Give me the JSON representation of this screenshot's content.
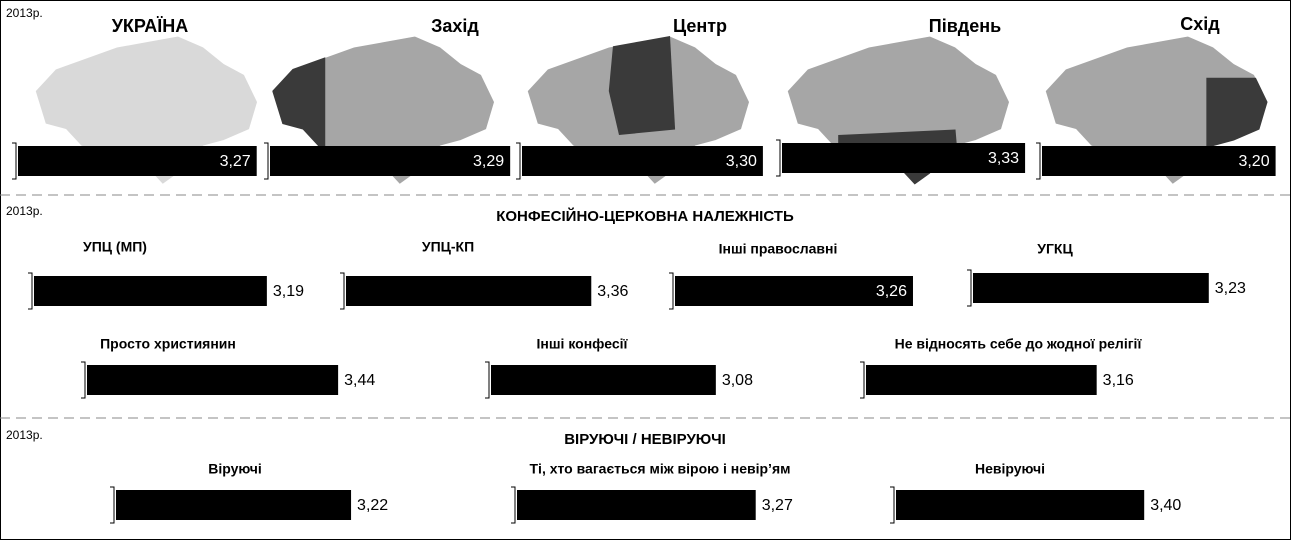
{
  "regions": {
    "year": "2013р.",
    "names": [
      "УКРАЇНА",
      "Захід",
      "Центр",
      "Південь",
      "Схід"
    ],
    "values": [
      3.27,
      3.29,
      3.3,
      3.33,
      3.2
    ],
    "value_labels": [
      "3,27",
      "3,29",
      "3,30",
      "3,33",
      "3,20"
    ]
  },
  "confession": {
    "year": "2013р.",
    "title": "КОНФЕСІЙНО-ЦЕРКОВНА НАЛЕЖНІСТЬ",
    "names": [
      "УПЦ (МП)",
      "УПЦ-КП",
      "Інші православні",
      "УГКЦ",
      "Просто християнин",
      "Інші конфесії",
      "Не відносять себе до жодної релігії"
    ],
    "values": [
      3.19,
      3.36,
      3.26,
      3.23,
      3.44,
      3.08,
      3.16
    ],
    "value_labels": [
      "3,19",
      "3,36",
      "3,26",
      "3,23",
      "3,44",
      "3,08",
      "3,16"
    ]
  },
  "belief": {
    "year": "2013р.",
    "title": "ВІРУЮЧІ / НЕВІРУЮЧІ",
    "names": [
      "Віруючі",
      "Ті, хто вагається між вірою і невір’ям",
      "Невіруючі"
    ],
    "values": [
      3.22,
      3.27,
      3.4
    ],
    "value_labels": [
      "3,22",
      "3,27",
      "3,40"
    ]
  }
}
